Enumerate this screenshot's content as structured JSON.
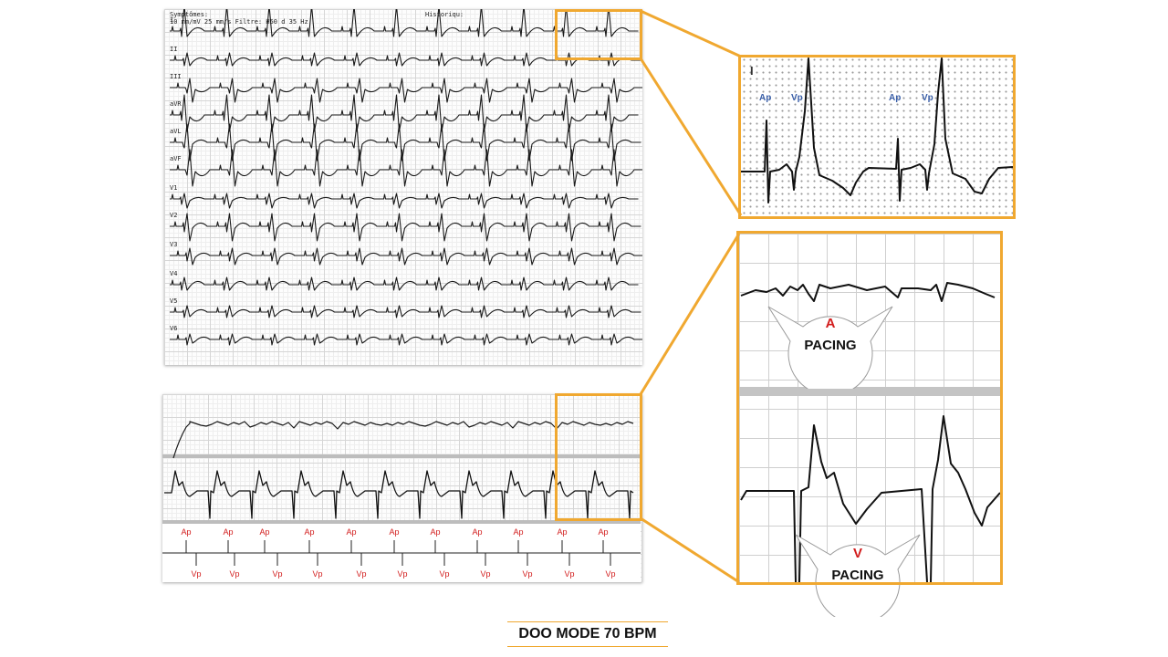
{
  "ecg12": {
    "header_left": "Symptômes:",
    "header_speed": "10 mm/mV 25 mm/s Filtre: H50 d 35 Hz",
    "header_right": "Historiqu:",
    "leads": [
      "I",
      "II",
      "III",
      "aVR",
      "aVL",
      "aVF",
      "V1",
      "V2",
      "V3",
      "V4",
      "V5",
      "V6"
    ]
  },
  "zoom_top": {
    "lead": "I",
    "labels": [
      "Ap",
      "Vp",
      "Ap",
      "Vp"
    ]
  },
  "strip": {
    "ap_labels": [
      "Ap",
      "Ap",
      "Ap",
      "Ap",
      "Ap",
      "Ap",
      "Ap",
      "Ap",
      "Ap",
      "Ap",
      "Ap"
    ],
    "vp_labels": [
      "Vp",
      "Vp",
      "Vp",
      "Vp",
      "Vp",
      "Vp",
      "Vp",
      "Vp",
      "Vp",
      "Vp",
      "Vp"
    ]
  },
  "callout_a": {
    "letter": "A",
    "word": "PACING"
  },
  "callout_v": {
    "letter": "V",
    "word": "PACING"
  },
  "caption": "DOO MODE 70 BPM",
  "colors": {
    "accent": "#f0a830",
    "marker_red": "#d21c1c",
    "label_blue": "#3a5fa8",
    "trace": "#111111"
  }
}
